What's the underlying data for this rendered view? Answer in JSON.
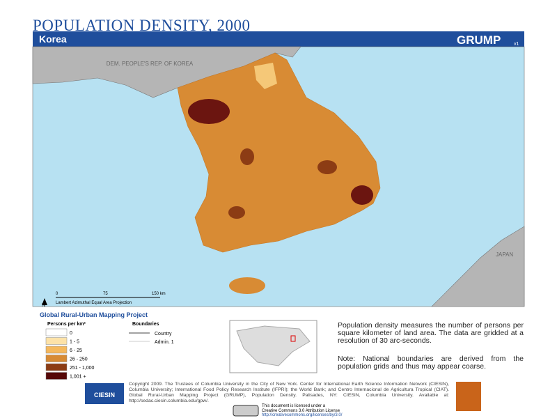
{
  "header": {
    "title": "POPULATION DENSITY, 2000",
    "region": "Korea",
    "brand": "GRUMP",
    "brand_version": "v1"
  },
  "map": {
    "labels": {
      "north_korea": "DEM. PEOPLE'S REP. OF KOREA",
      "japan": "JAPAN"
    },
    "north_arrow": "N",
    "scale": {
      "ticks": [
        "0",
        "75",
        "150 km"
      ],
      "projection": "Lambert Azimuthal Equal Area Projection"
    }
  },
  "legend": {
    "project": "Global Rural-Urban Mapping Project",
    "title": "Persons per km²",
    "classes": [
      {
        "label": "0",
        "color": "#ffffff"
      },
      {
        "label": "1 - 5",
        "color": "#fde2a8"
      },
      {
        "label": "6 - 25",
        "color": "#f5b85c"
      },
      {
        "label": "26 - 250",
        "color": "#d88b34"
      },
      {
        "label": "251 - 1,000",
        "color": "#8c3c14"
      },
      {
        "label": "1,001 +",
        "color": "#560808"
      }
    ],
    "boundaries": {
      "title": "Boundaries",
      "items": [
        "Country",
        "Admin. 1"
      ]
    }
  },
  "notes": {
    "description": "Population density measures the number of persons per square kilometer of land area. The data are gridded at a resolution of 30 arc-seconds.",
    "note": "Note: National boundaries are derived from the population grids and thus may appear coarse."
  },
  "footer": {
    "logo": "CIESIN",
    "copyright": "Copyright 2009. The Trustees of Columbia University in the City of New York. Center for International Earth Science Information Network (CIESIN), Columbia University; International Food Policy Research Institute (IFPRI); the World Bank; and Centro Internacional de Agricultura Tropical (CIAT). Global Rural-Urban Mapping Project (GRUMP), Population Density. Palisades, NY: CIESIN, Columbia University. Available at: http://sedac.ciesin.columbia.edu/gpw/.",
    "license": [
      "This document is licensed under a",
      "Creative Commons 3.0 Attribution License",
      "http://creativecommons.org/licenses/by/3.0/"
    ]
  }
}
